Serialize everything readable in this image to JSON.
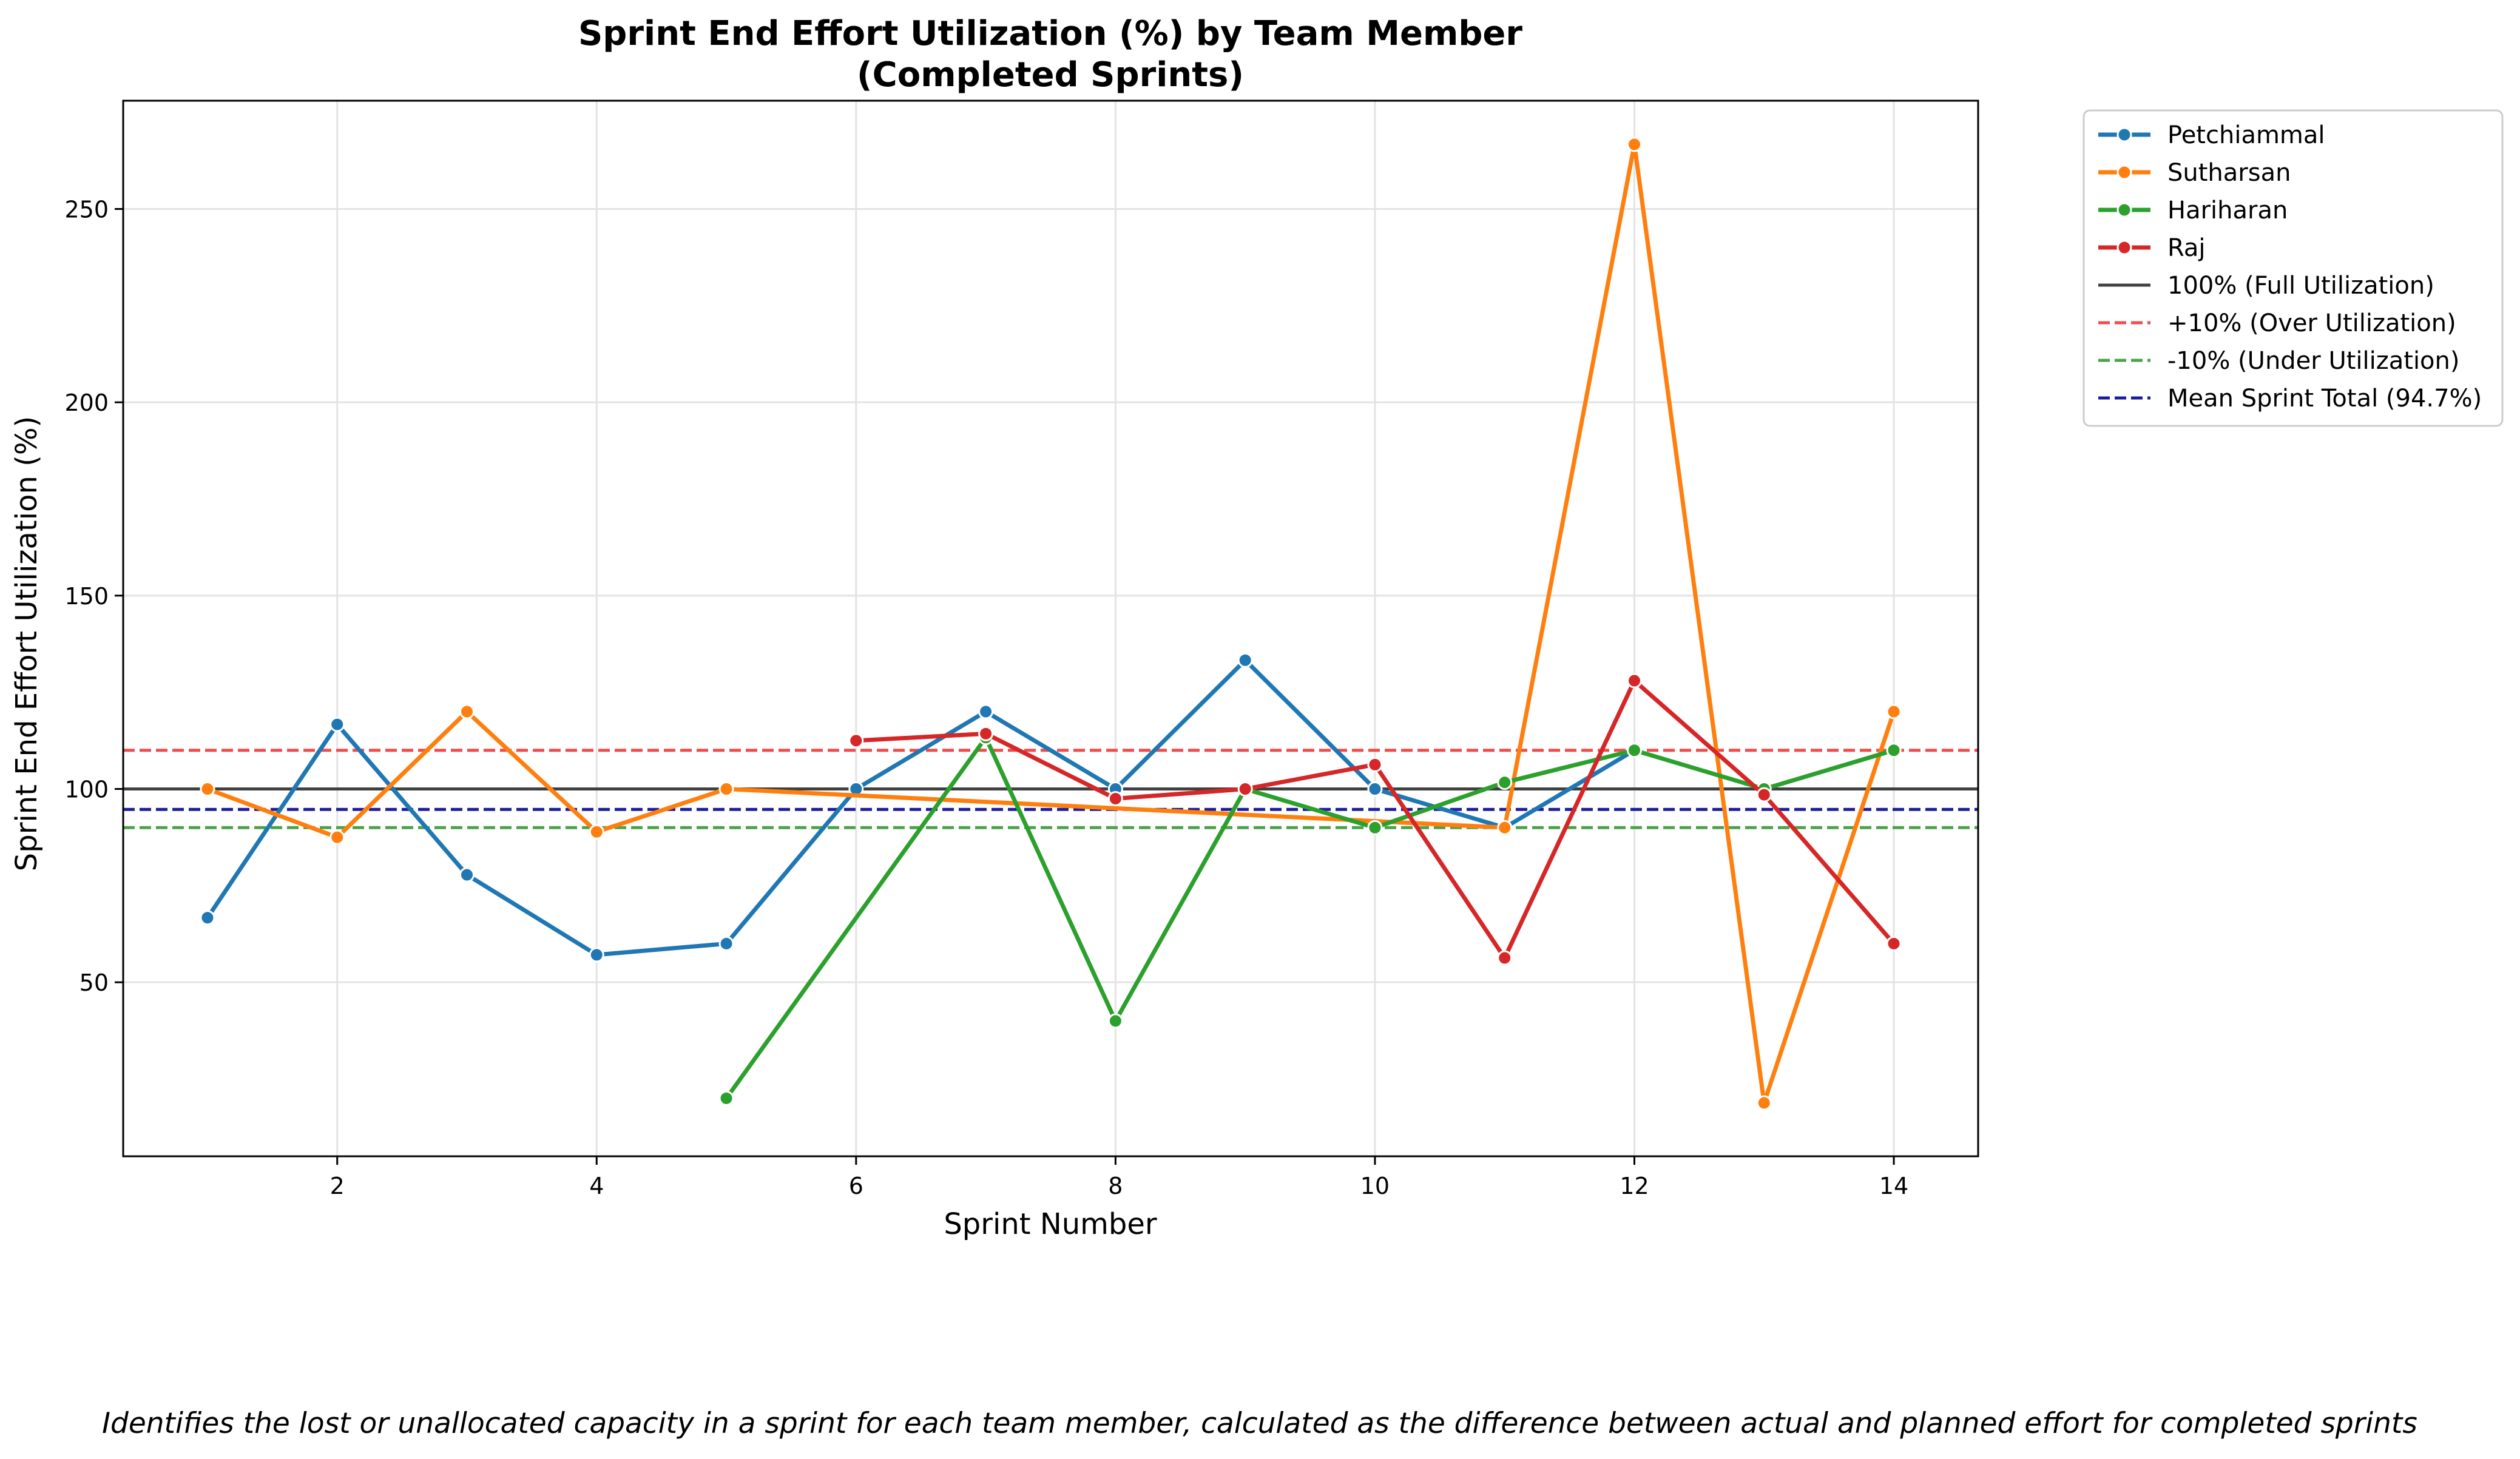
{
  "chart_data": {
    "type": "line",
    "title_lines": [
      "Sprint End Effort Utilization (%) by Team Member",
      "(Completed Sprints)"
    ],
    "xlabel": "Sprint Number",
    "ylabel": "Sprint End Effort Utilization (%)",
    "caption": "Identifies the lost or unallocated capacity in a sprint for each team member, calculated as the difference between actual and planned effort for completed sprints",
    "xlim": [
      0.35,
      14.65
    ],
    "ylim": [
      5,
      278
    ],
    "x_ticks": [
      2,
      4,
      6,
      8,
      10,
      12,
      14
    ],
    "y_ticks": [
      50,
      100,
      150,
      200,
      250
    ],
    "grid": true,
    "legend_position": "outside-top-right",
    "series": [
      {
        "name": "Petchiammal",
        "color": "#1f77b4",
        "points": [
          [
            1,
            66.7
          ],
          [
            2,
            116.7
          ],
          [
            3,
            77.8
          ],
          [
            4,
            57.1
          ],
          [
            5,
            60
          ],
          [
            6,
            100
          ],
          [
            7,
            120
          ],
          [
            8,
            100
          ],
          [
            9,
            133.3
          ],
          [
            10,
            100
          ],
          [
            11,
            90
          ],
          [
            12,
            110
          ]
        ]
      },
      {
        "name": "Sutharsan",
        "color": "#ff7f0e",
        "points": [
          [
            1,
            100
          ],
          [
            2,
            87.5
          ],
          [
            3,
            120
          ],
          [
            4,
            88.9
          ],
          [
            5,
            100
          ],
          [
            11,
            90
          ],
          [
            12,
            266.7
          ],
          [
            13,
            18.8
          ],
          [
            14,
            120
          ]
        ]
      },
      {
        "name": "Hariharan",
        "color": "#2ca02c",
        "points": [
          [
            5,
            20
          ],
          [
            7,
            113.3
          ],
          [
            8,
            40
          ],
          [
            9,
            100
          ],
          [
            10,
            90
          ],
          [
            11,
            101.7
          ],
          [
            12,
            110
          ],
          [
            13,
            100
          ],
          [
            14,
            110
          ]
        ]
      },
      {
        "name": "Raj",
        "color": "#d62728",
        "points": [
          [
            6,
            112.5
          ],
          [
            7,
            114.3
          ],
          [
            8,
            97.5
          ],
          [
            9,
            100
          ],
          [
            10,
            106.3
          ],
          [
            11,
            56.3
          ],
          [
            12,
            128
          ],
          [
            13,
            98.5
          ],
          [
            14,
            60
          ]
        ]
      }
    ],
    "reference_lines": [
      {
        "name": "100% (Full Utilization)",
        "y": 100,
        "color": "#404040",
        "dashed": false
      },
      {
        "name": "+10% (Over Utilization)",
        "y": 110,
        "color": "#f24b4b",
        "dashed": true
      },
      {
        "name": "-10% (Under Utilization)",
        "y": 90,
        "color": "#4aa34a",
        "dashed": true
      },
      {
        "name": "Mean Sprint Total (94.7%)",
        "y": 94.7,
        "color": "#1c1c9e",
        "dashed": true
      }
    ]
  }
}
